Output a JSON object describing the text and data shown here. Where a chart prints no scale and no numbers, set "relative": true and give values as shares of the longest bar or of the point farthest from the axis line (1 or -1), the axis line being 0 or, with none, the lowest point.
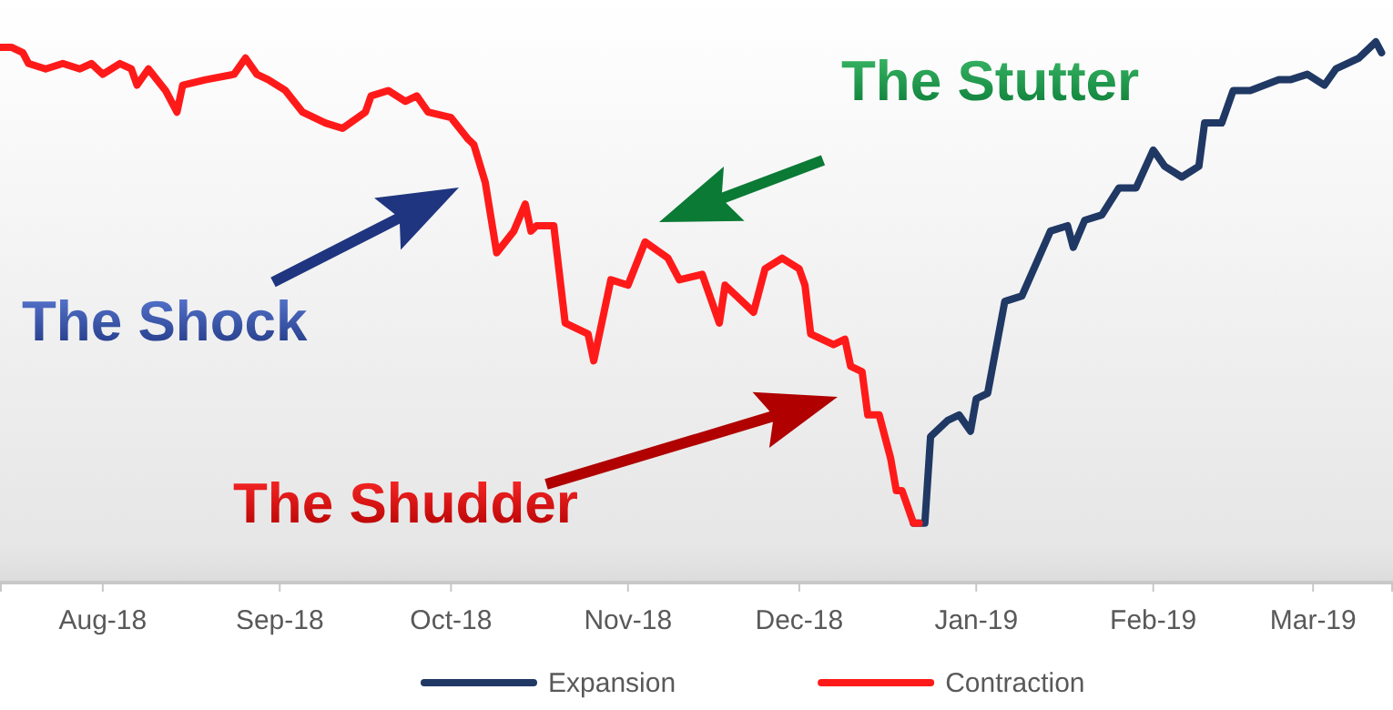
{
  "chart_data": {
    "type": "line",
    "relative": true,
    "legend": "bottom",
    "xlim": [
      "2018-07-14",
      "2019-03-15"
    ],
    "xticks": [
      {
        "value": "2018-08-01",
        "label": "Aug-18"
      },
      {
        "value": "2018-09-01",
        "label": "Sep-18"
      },
      {
        "value": "2018-10-01",
        "label": "Oct-18"
      },
      {
        "value": "2018-11-01",
        "label": "Nov-18"
      },
      {
        "value": "2018-12-01",
        "label": "Dec-18"
      },
      {
        "value": "2019-01-01",
        "label": "Jan-19"
      },
      {
        "value": "2019-02-01",
        "label": "Feb-19"
      },
      {
        "value": "2019-03-01",
        "label": "Mar-19"
      }
    ],
    "annotations": [
      "The Shock",
      "The Stutter",
      "The Shudder"
    ],
    "series": [
      {
        "name": "Expansion",
        "color": "#203864",
        "x": [
          "2018-12-21",
          "2018-12-23",
          "2018-12-24",
          "2018-12-27",
          "2018-12-29",
          "2018-12-31",
          "2019-01-01",
          "2019-01-03",
          "2019-01-06",
          "2019-01-09",
          "2019-01-14",
          "2019-01-17",
          "2019-01-18",
          "2019-01-20",
          "2019-01-23",
          "2019-01-26",
          "2019-01-29",
          "2019-02-01",
          "2019-02-03",
          "2019-02-06",
          "2019-02-09",
          "2019-02-10",
          "2019-02-13",
          "2019-02-15",
          "2019-02-18",
          "2019-02-23",
          "2019-02-25",
          "2019-02-28",
          "2019-03-03",
          "2019-03-05",
          "2019-03-09",
          "2019-03-12",
          "2019-03-13"
        ],
        "values": [
          0.11,
          0.11,
          0.27,
          0.3,
          0.31,
          0.28,
          0.34,
          0.35,
          0.52,
          0.53,
          0.65,
          0.66,
          0.62,
          0.67,
          0.68,
          0.73,
          0.73,
          0.8,
          0.77,
          0.75,
          0.77,
          0.85,
          0.85,
          0.91,
          0.91,
          0.93,
          0.93,
          0.94,
          0.92,
          0.95,
          0.97,
          1.0,
          0.98
        ]
      },
      {
        "name": "Contraction",
        "color": "#ff1a1a",
        "x": [
          "2018-07-14",
          "2018-07-16",
          "2018-07-18",
          "2018-07-19",
          "2018-07-22",
          "2018-07-25",
          "2018-07-28",
          "2018-07-30",
          "2018-08-01",
          "2018-08-04",
          "2018-08-06",
          "2018-08-07",
          "2018-08-09",
          "2018-08-12",
          "2018-08-14",
          "2018-08-15",
          "2018-08-19",
          "2018-08-24",
          "2018-08-26",
          "2018-08-28",
          "2018-08-30",
          "2018-09-02",
          "2018-09-05",
          "2018-09-09",
          "2018-09-12",
          "2018-09-16",
          "2018-09-17",
          "2018-09-20",
          "2018-09-23",
          "2018-09-25",
          "2018-09-27",
          "2018-10-01",
          "2018-10-04",
          "2018-10-05",
          "2018-10-07",
          "2018-10-09",
          "2018-10-12",
          "2018-10-14",
          "2018-10-15",
          "2018-10-16",
          "2018-10-19",
          "2018-10-21",
          "2018-10-25",
          "2018-10-26",
          "2018-10-29",
          "2018-11-01",
          "2018-11-04",
          "2018-11-08",
          "2018-11-10",
          "2018-11-14",
          "2018-11-17",
          "2018-11-18",
          "2018-11-20",
          "2018-11-23",
          "2018-11-25",
          "2018-11-28",
          "2018-12-01",
          "2018-12-02",
          "2018-12-03",
          "2018-12-07",
          "2018-12-09",
          "2018-12-10",
          "2018-12-12",
          "2018-12-13",
          "2018-12-15",
          "2018-12-17",
          "2018-12-18",
          "2018-12-19",
          "2018-12-21",
          "2018-12-22"
        ],
        "values": [
          0.99,
          0.99,
          0.98,
          0.96,
          0.95,
          0.96,
          0.95,
          0.96,
          0.94,
          0.96,
          0.95,
          0.92,
          0.95,
          0.91,
          0.87,
          0.92,
          0.93,
          0.94,
          0.97,
          0.94,
          0.93,
          0.91,
          0.87,
          0.85,
          0.84,
          0.87,
          0.9,
          0.91,
          0.89,
          0.9,
          0.87,
          0.86,
          0.82,
          0.81,
          0.74,
          0.61,
          0.65,
          0.7,
          0.65,
          0.66,
          0.66,
          0.48,
          0.46,
          0.41,
          0.56,
          0.55,
          0.63,
          0.6,
          0.56,
          0.57,
          0.48,
          0.55,
          0.53,
          0.5,
          0.58,
          0.6,
          0.58,
          0.55,
          0.46,
          0.44,
          0.45,
          0.4,
          0.39,
          0.31,
          0.31,
          0.23,
          0.17,
          0.17,
          0.11,
          0.11
        ]
      }
    ]
  }
}
